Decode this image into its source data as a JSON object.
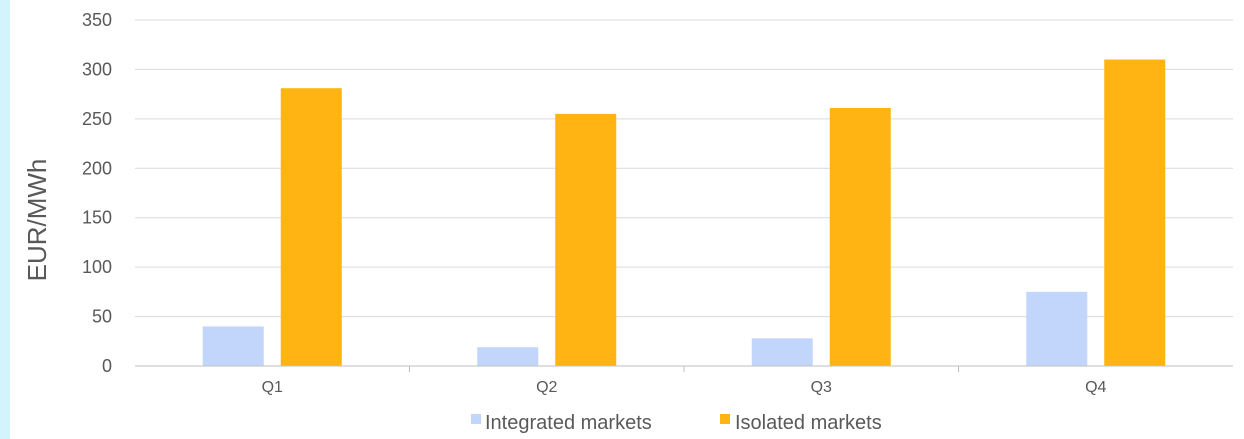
{
  "chart_data": {
    "type": "bar",
    "title": "",
    "xlabel": "",
    "ylabel": "EUR/MWh",
    "categories": [
      "Q1",
      "Q2",
      "Q3",
      "Q4"
    ],
    "series": [
      {
        "name": "Integrated markets",
        "color": "#c2d5fb",
        "values": [
          40,
          19,
          28,
          75
        ]
      },
      {
        "name": "Isolated markets",
        "color": "#ffb413",
        "values": [
          281,
          255,
          261,
          310
        ]
      }
    ],
    "ylim": [
      0,
      350
    ],
    "yticks": [
      0,
      50,
      100,
      150,
      200,
      250,
      300,
      350
    ],
    "grid": true,
    "legend_position": "bottom"
  }
}
